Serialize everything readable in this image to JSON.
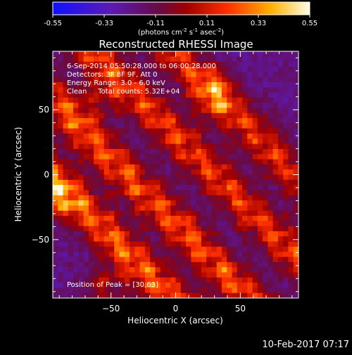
{
  "chart_data": {
    "type": "heatmap",
    "title": "Reconstructed RHESSI Image",
    "xlabel": "Heliocentric X (arcsec)",
    "ylabel": "Heliocentric Y (arcsec)",
    "xlim": [
      -95,
      95
    ],
    "ylim": [
      -95,
      95
    ],
    "xticks": [
      -50,
      0,
      50
    ],
    "yticks": [
      -50,
      0,
      50
    ],
    "colorbar": {
      "ticks": [
        "-0.55",
        "-0.33",
        "-0.11",
        "0.11",
        "0.33",
        "0.55"
      ],
      "range": [
        -0.55,
        0.55
      ],
      "units_parts": [
        "(photons cm",
        "-2",
        " s",
        "-1",
        " asec",
        "-2",
        ")"
      ]
    },
    "info_lines": [
      "6-Sep-2014 05:50:28.000 to 06:00:28.000",
      "Detectors: 3F 8F 9F, Att 0",
      "Energy Range: 3.0 - 6.0 keV",
      "Clean     Total counts: 5.32E+04"
    ],
    "peak_label": "Position of Peak = [30,63]",
    "peak_position": [
      30,
      63
    ],
    "grid": false,
    "ridges": [
      {
        "offset": -98,
        "amplitude": 1.0
      },
      {
        "offset": -38,
        "amplitude": 0.95
      },
      {
        "offset": 30,
        "amplitude": 0.85
      },
      {
        "offset": 92,
        "amplitude": 0.8
      }
    ],
    "peaks": [
      {
        "x": 30,
        "y": 63,
        "value": 0.55
      },
      {
        "x": -92,
        "y": -18,
        "value": 0.55
      },
      {
        "x": -55,
        "y": -88,
        "value": 0.5
      },
      {
        "x": -60,
        "y": 58,
        "value": 0.4
      }
    ]
  },
  "timestamp": "10-Feb-2017 07:17"
}
